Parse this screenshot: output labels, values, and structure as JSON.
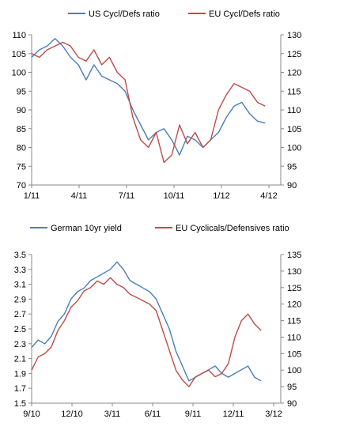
{
  "chart_data": [
    {
      "type": "line",
      "x_axis": {
        "labels": [
          "1/11",
          "4/11",
          "7/11",
          "10/11",
          "1/12",
          "4/12"
        ],
        "range_months": [
          0,
          16
        ]
      },
      "y_left": {
        "range": [
          70,
          110
        ],
        "ticks": [
          70,
          75,
          80,
          85,
          90,
          95,
          100,
          105,
          110
        ]
      },
      "y_right": {
        "range": [
          90,
          130
        ],
        "ticks": [
          90,
          95,
          100,
          105,
          110,
          115,
          120,
          125,
          130
        ]
      },
      "grid": false,
      "legend_position": "top",
      "series": [
        {
          "name": "US Cycl/Defs ratio",
          "axis": "left",
          "color": "#4a7ebb",
          "x": [
            0,
            0.5,
            1,
            1.5,
            2,
            2.5,
            3,
            3.5,
            4,
            4.5,
            5,
            5.5,
            6,
            6.5,
            7,
            7.5,
            8,
            8.5,
            9,
            9.5,
            10,
            10.5,
            11,
            11.5,
            12,
            12.5,
            13,
            13.5,
            14,
            14.5,
            15
          ],
          "values": [
            104,
            106,
            107,
            109,
            107,
            104,
            102,
            98,
            102,
            99,
            98,
            97,
            95,
            90,
            86,
            82,
            84,
            85,
            82,
            78,
            83,
            82,
            80,
            82,
            84,
            88,
            91,
            92,
            89,
            87,
            86.5
          ]
        },
        {
          "name": "EU Cycl/Defs ratio",
          "axis": "right",
          "color": "#be4b48",
          "x": [
            0,
            0.5,
            1,
            1.5,
            2,
            2.5,
            3,
            3.5,
            4,
            4.5,
            5,
            5.5,
            6,
            6.5,
            7,
            7.5,
            8,
            8.5,
            9,
            9.5,
            10,
            10.5,
            11,
            11.5,
            12,
            12.5,
            13,
            13.5,
            14,
            14.5,
            15
          ],
          "values": [
            125,
            124,
            126,
            127,
            128,
            127,
            124,
            123,
            126,
            122,
            124,
            120,
            118,
            108,
            102,
            100,
            104,
            96,
            98,
            106,
            101,
            104,
            100,
            102,
            110,
            114,
            117,
            116,
            115,
            112,
            111
          ]
        }
      ]
    },
    {
      "type": "line",
      "x_axis": {
        "labels": [
          "9/10",
          "12/10",
          "3/11",
          "6/11",
          "9/11",
          "12/11",
          "3/12"
        ],
        "range_months": [
          0,
          19
        ]
      },
      "y_left": {
        "range": [
          1.5,
          3.5
        ],
        "ticks": [
          1.5,
          1.7,
          1.9,
          2.1,
          2.3,
          2.5,
          2.7,
          2.9,
          3.1,
          3.3,
          3.5
        ]
      },
      "y_right": {
        "range": [
          90,
          135
        ],
        "ticks": [
          90,
          95,
          100,
          105,
          110,
          115,
          120,
          125,
          130,
          135
        ]
      },
      "grid": false,
      "legend_position": "top",
      "series": [
        {
          "name": "German 10yr yield",
          "axis": "left",
          "color": "#4a7ebb",
          "x": [
            0,
            0.5,
            1,
            1.5,
            2,
            2.5,
            3,
            3.5,
            4,
            4.5,
            5,
            5.5,
            6,
            6.5,
            7,
            7.5,
            8,
            8.5,
            9,
            9.5,
            10,
            10.5,
            11,
            11.5,
            12,
            12.5,
            13,
            13.5,
            14,
            14.5,
            15,
            15.5,
            16,
            16.5,
            17,
            17.5
          ],
          "values": [
            2.25,
            2.35,
            2.3,
            2.4,
            2.6,
            2.7,
            2.9,
            3.0,
            3.05,
            3.15,
            3.2,
            3.25,
            3.3,
            3.4,
            3.3,
            3.15,
            3.1,
            3.05,
            3.0,
            2.9,
            2.7,
            2.5,
            2.2,
            2.0,
            1.8,
            1.85,
            1.9,
            1.95,
            2.0,
            1.9,
            1.85,
            1.9,
            1.95,
            2.0,
            1.85,
            1.8
          ]
        },
        {
          "name": "EU Cyclicals/Defensives ratio",
          "axis": "right",
          "color": "#be4b48",
          "x": [
            0,
            0.5,
            1,
            1.5,
            2,
            2.5,
            3,
            3.5,
            4,
            4.5,
            5,
            5.5,
            6,
            6.5,
            7,
            7.5,
            8,
            8.5,
            9,
            9.5,
            10,
            10.5,
            11,
            11.5,
            12,
            12.5,
            13,
            13.5,
            14,
            14.5,
            15,
            15.5,
            16,
            16.5,
            17,
            17.5
          ],
          "values": [
            100,
            104,
            105,
            107,
            112,
            115,
            119,
            121,
            124,
            125,
            127,
            126,
            128,
            126,
            125,
            123,
            122,
            121,
            120,
            118,
            112,
            106,
            100,
            97,
            95,
            98,
            99,
            100,
            98,
            99,
            102,
            110,
            115,
            117,
            114,
            112
          ]
        }
      ]
    }
  ]
}
